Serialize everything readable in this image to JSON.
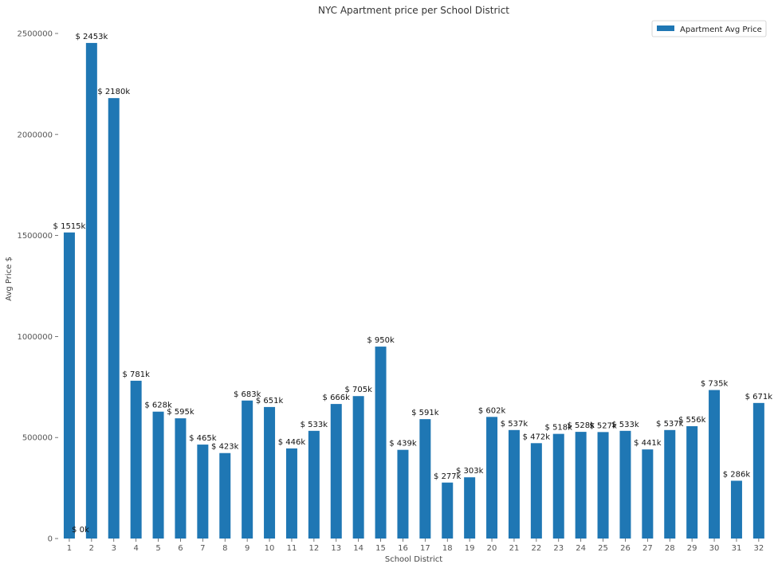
{
  "chart_data": {
    "type": "bar",
    "title": "NYC Apartment price per School District",
    "xlabel": "School District",
    "ylabel": "Avg Price $",
    "ylim": [
      0,
      2500000
    ],
    "yticks": [
      "0",
      "500000",
      "1000000",
      "1500000",
      "2000000",
      "2500000"
    ],
    "categories": [
      "1",
      "2",
      "3",
      "4",
      "5",
      "6",
      "7",
      "8",
      "9",
      "10",
      "11",
      "12",
      "13",
      "14",
      "15",
      "16",
      "17",
      "18",
      "19",
      "20",
      "21",
      "22",
      "23",
      "24",
      "25",
      "26",
      "27",
      "28",
      "29",
      "30",
      "31",
      "32"
    ],
    "series": [
      {
        "name": "Apartment Avg Price",
        "color": "#1f77b4",
        "values": [
          1515000,
          2453000,
          2180000,
          781000,
          628000,
          595000,
          465000,
          423000,
          683000,
          651000,
          446000,
          533000,
          666000,
          705000,
          950000,
          439000,
          591000,
          277000,
          303000,
          602000,
          537000,
          472000,
          518000,
          528000,
          527000,
          533000,
          441000,
          537000,
          556000,
          735000,
          286000,
          671000
        ],
        "labels": [
          "$ 1515k",
          "$ 2453k",
          "$ 2180k",
          "$ 781k",
          "$ 628k",
          "$ 595k",
          "$ 465k",
          "$ 423k",
          "$ 683k",
          "$ 651k",
          "$ 446k",
          "$ 533k",
          "$ 666k",
          "$ 705k",
          "$ 950k",
          "$ 439k",
          "$ 591k",
          "$ 277k",
          "$ 303k",
          "$ 602k",
          "$ 537k",
          "$ 472k",
          "$ 518k",
          "$ 528k",
          "$ 527k",
          "$ 533k",
          "$ 441k",
          "$ 537k",
          "$ 556k",
          "$ 735k",
          "$ 286k",
          "$ 671k"
        ]
      }
    ],
    "extra_labels": [
      "$ 0k"
    ],
    "legend": "top-right",
    "grid": false
  }
}
